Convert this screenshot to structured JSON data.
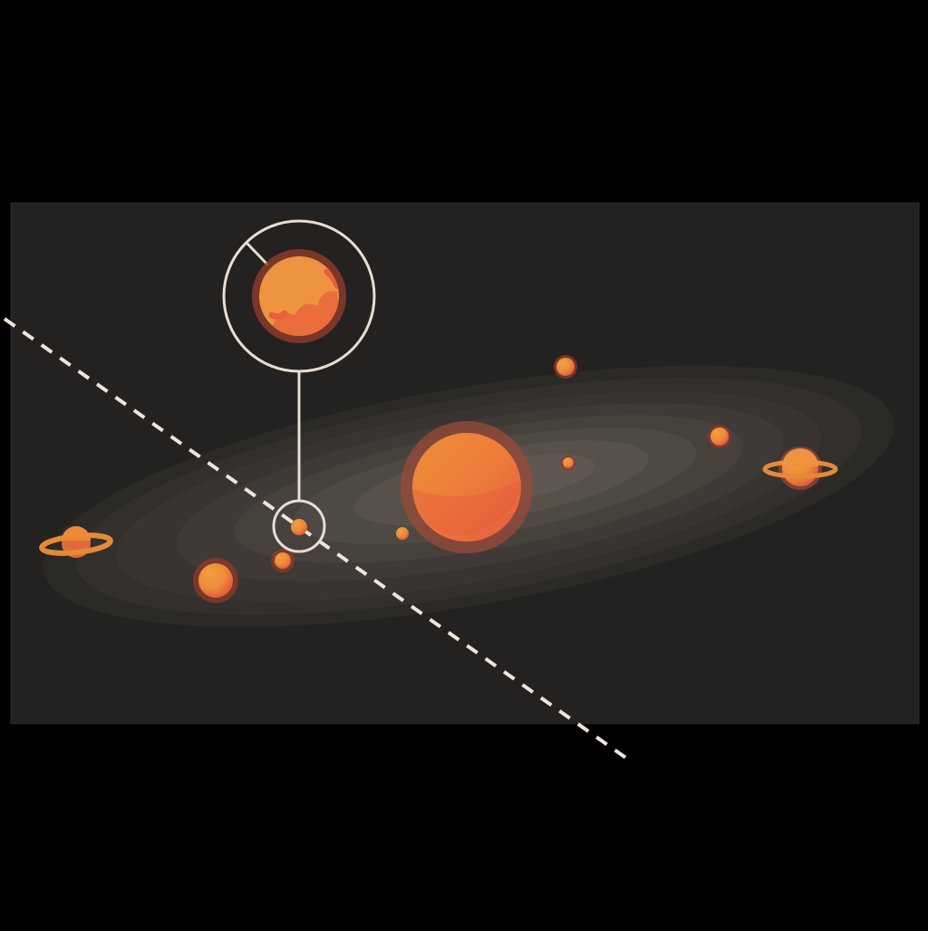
{
  "scene": {
    "description_free": true,
    "colors": {
      "page_background": "#000000",
      "panel_background": "#232220",
      "panel_border": "#2e2d2b",
      "galaxy_core": "#6b635b",
      "galaxy_outer": "#3a3633",
      "planet_fill_light": "#ee9a40",
      "planet_fill_dark": "#e8603a",
      "planet_halo": "#8a3a2a",
      "ring_color": "#e48a38",
      "callout_stroke": "#e9ddd2",
      "dashed_line": "#f0e4da"
    },
    "icons": {
      "sun": "sun-icon",
      "ringed_planet": "ringed-planet-icon",
      "planet": "planet-icon",
      "magnifier_callout": "zoom-callout-icon",
      "trajectory": "dashed-trajectory-line"
    }
  }
}
